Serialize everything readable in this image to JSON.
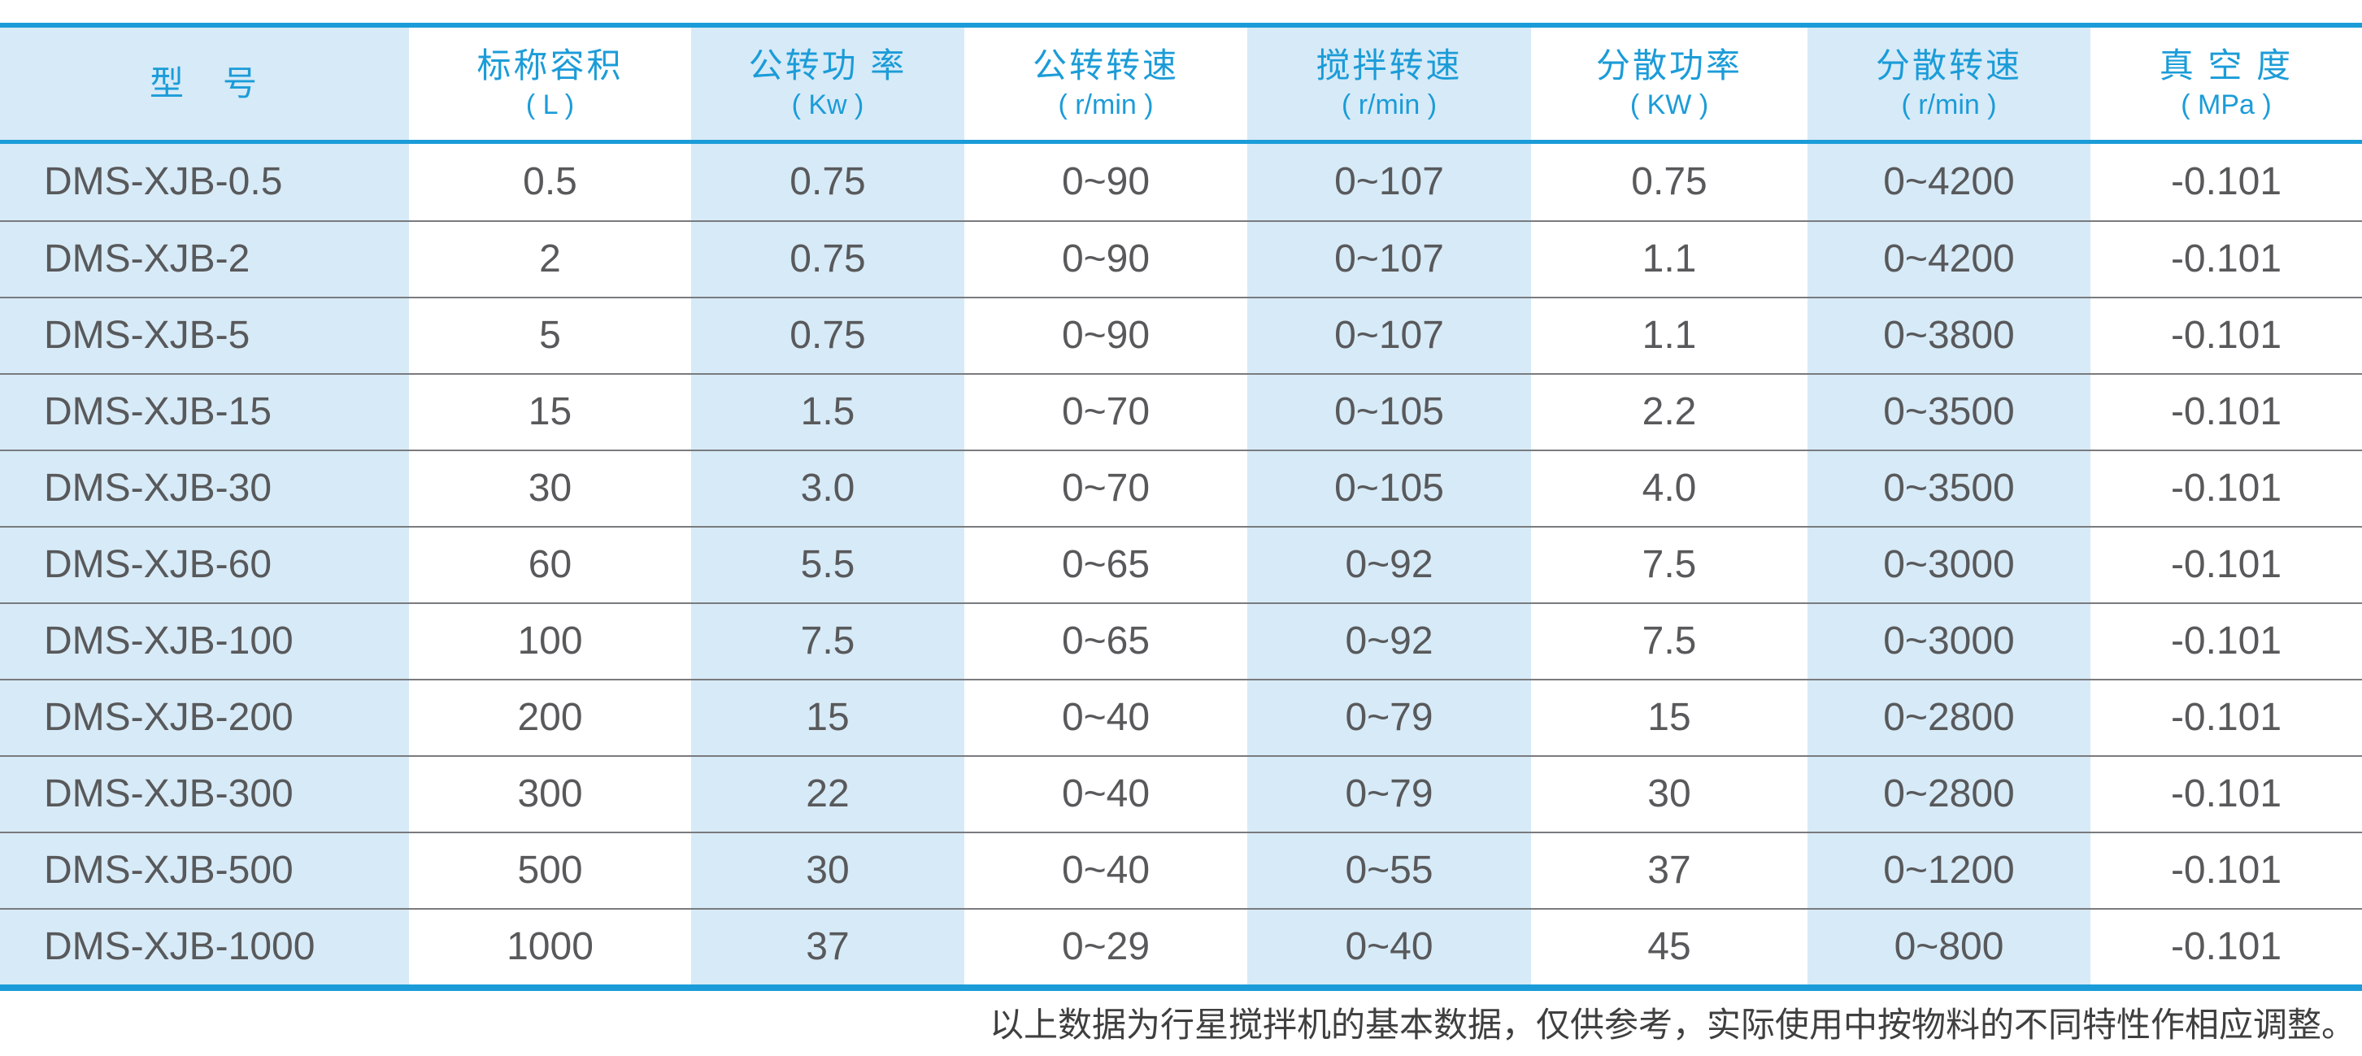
{
  "table": {
    "columns": [
      {
        "label": "型　号",
        "unit": ""
      },
      {
        "label": "标称容积",
        "unit": "( L )"
      },
      {
        "label": "公转功 率",
        "unit": "( Kw )"
      },
      {
        "label": "公转转速",
        "unit": "( r/min )"
      },
      {
        "label": "搅拌转速",
        "unit": "( r/min )"
      },
      {
        "label": "分散功率",
        "unit": "( KW )"
      },
      {
        "label": "分散转速",
        "unit": "( r/min )"
      },
      {
        "label": "真 空 度",
        "unit": "( MPa )"
      }
    ],
    "rows": [
      [
        "DMS-XJB-0.5",
        "0.5",
        "0.75",
        "0~90",
        "0~107",
        "0.75",
        "0~4200",
        "-0.101"
      ],
      [
        "DMS-XJB-2",
        "2",
        "0.75",
        "0~90",
        "0~107",
        "1.1",
        "0~4200",
        "-0.101"
      ],
      [
        "DMS-XJB-5",
        "5",
        "0.75",
        "0~90",
        "0~107",
        "1.1",
        "0~3800",
        "-0.101"
      ],
      [
        "DMS-XJB-15",
        "15",
        "1.5",
        "0~70",
        "0~105",
        "2.2",
        "0~3500",
        "-0.101"
      ],
      [
        "DMS-XJB-30",
        "30",
        "3.0",
        "0~70",
        "0~105",
        "4.0",
        "0~3500",
        "-0.101"
      ],
      [
        "DMS-XJB-60",
        "60",
        "5.5",
        "0~65",
        "0~92",
        "7.5",
        "0~3000",
        "-0.101"
      ],
      [
        "DMS-XJB-100",
        "100",
        "7.5",
        "0~65",
        "0~92",
        "7.5",
        "0~3000",
        "-0.101"
      ],
      [
        "DMS-XJB-200",
        "200",
        "15",
        "0~40",
        "0~79",
        "15",
        "0~2800",
        "-0.101"
      ],
      [
        "DMS-XJB-300",
        "300",
        "22",
        "0~40",
        "0~79",
        "30",
        "0~2800",
        "-0.101"
      ],
      [
        "DMS-XJB-500",
        "500",
        "30",
        "0~40",
        "0~55",
        "37",
        "0~1200",
        "-0.101"
      ],
      [
        "DMS-XJB-1000",
        "1000",
        "37",
        "0~29",
        "0~40",
        "45",
        "0~800",
        "-0.101"
      ]
    ]
  },
  "note": {
    "text": "以上数据为行星搅拌机的基本数据，仅供参考，实际使用中按物料的不同特性作相应调整。"
  },
  "colors": {
    "accent_blue": "#1b9cd8",
    "stripe_blue": "#d7eaf7",
    "body_text": "#58595b",
    "separator_gray": "#797b7e",
    "note_text": "#3f3f3f"
  }
}
